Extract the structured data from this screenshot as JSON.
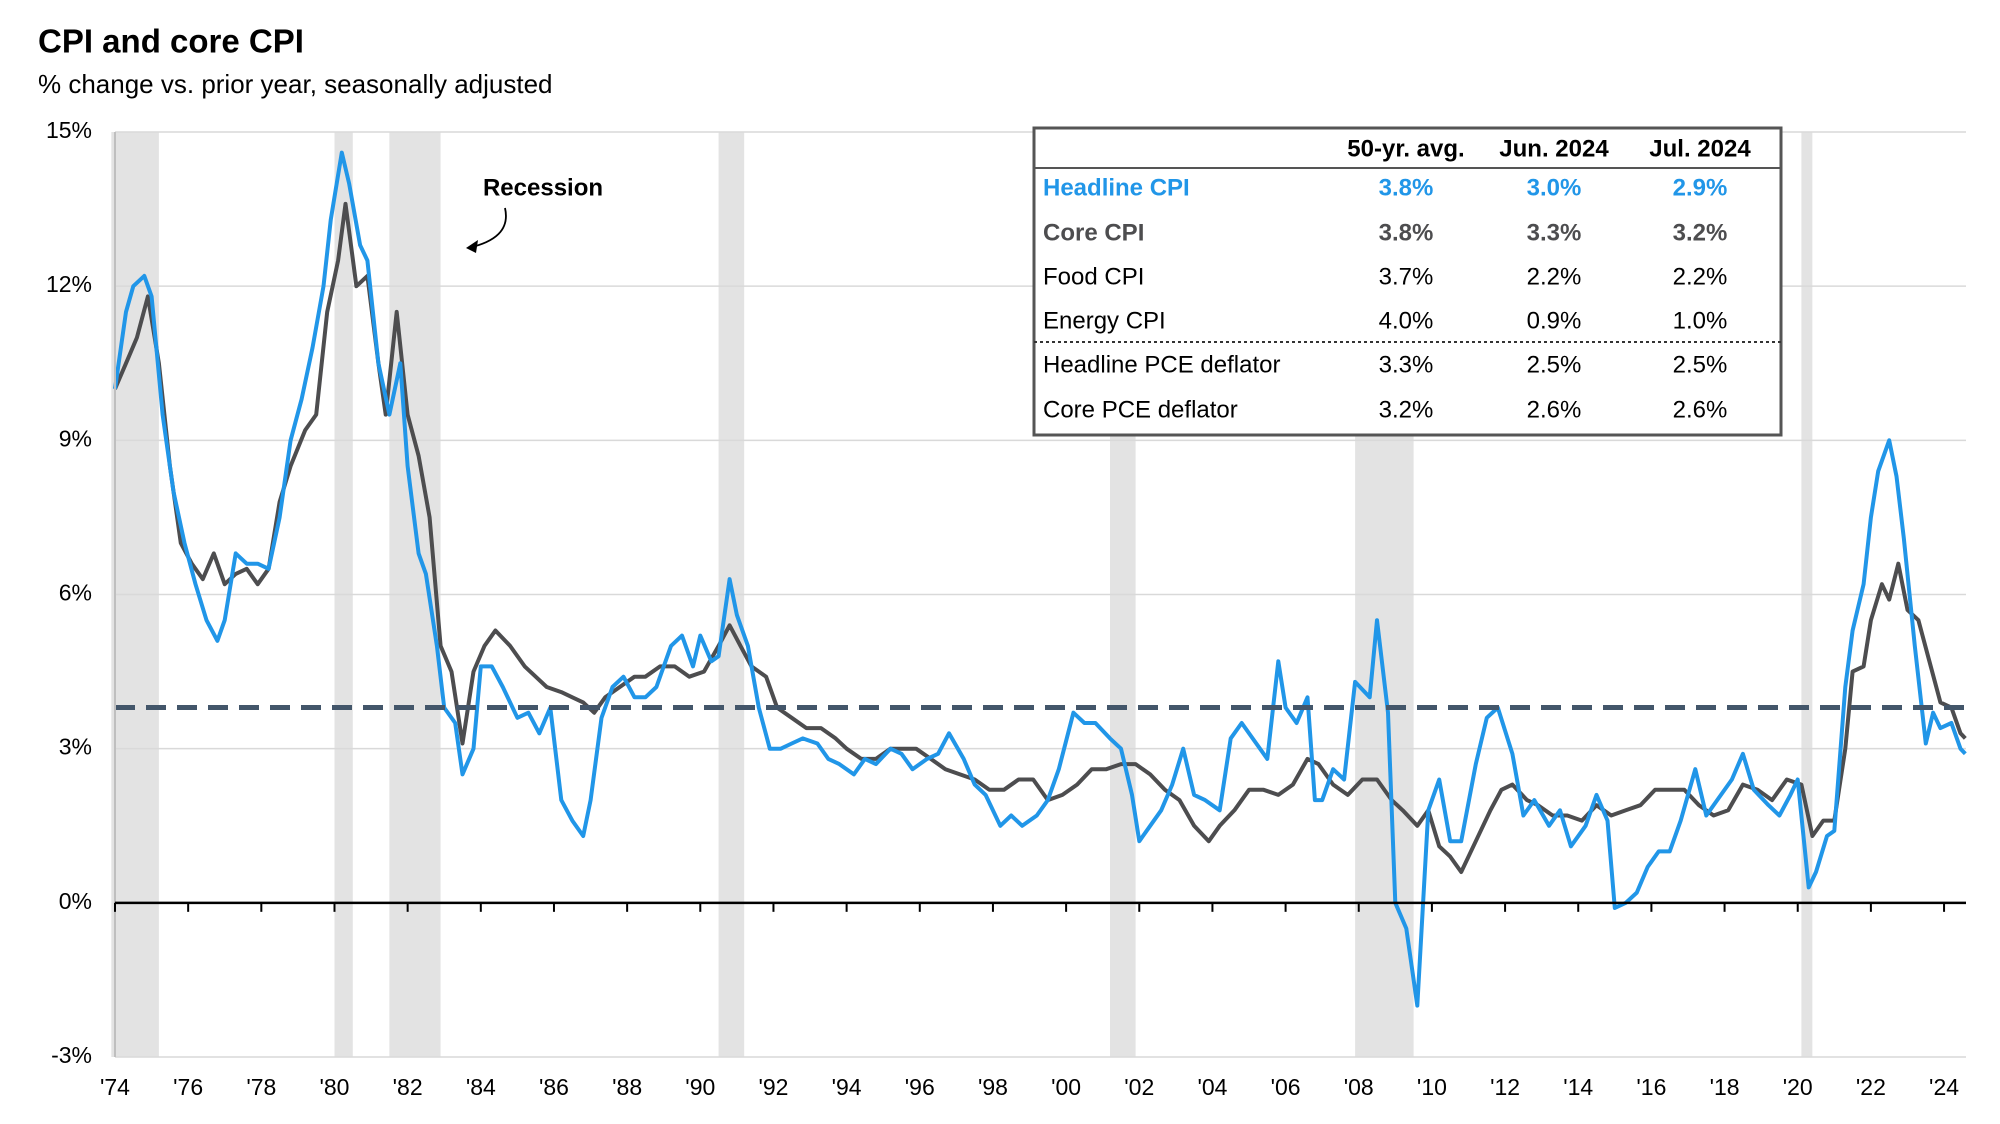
{
  "chart_data": {
    "type": "line",
    "title": "CPI and core CPI",
    "subtitle": "% change vs. prior year, seasonally adjusted",
    "annotation": "Recession",
    "xlim": [
      1974,
      2024.6
    ],
    "xticks": [
      {
        "value": 1974,
        "label": "'74"
      },
      {
        "value": 1976,
        "label": "'76"
      },
      {
        "value": 1978,
        "label": "'78"
      },
      {
        "value": 1980,
        "label": "'80"
      },
      {
        "value": 1982,
        "label": "'82"
      },
      {
        "value": 1984,
        "label": "'84"
      },
      {
        "value": 1986,
        "label": "'86"
      },
      {
        "value": 1988,
        "label": "'88"
      },
      {
        "value": 1990,
        "label": "'90"
      },
      {
        "value": 1992,
        "label": "'92"
      },
      {
        "value": 1994,
        "label": "'94"
      },
      {
        "value": 1996,
        "label": "'96"
      },
      {
        "value": 1998,
        "label": "'98"
      },
      {
        "value": 2000,
        "label": "'00"
      },
      {
        "value": 2002,
        "label": "'02"
      },
      {
        "value": 2004,
        "label": "'04"
      },
      {
        "value": 2006,
        "label": "'06"
      },
      {
        "value": 2008,
        "label": "'08"
      },
      {
        "value": 2010,
        "label": "'10"
      },
      {
        "value": 2012,
        "label": "'12"
      },
      {
        "value": 2014,
        "label": "'14"
      },
      {
        "value": 2016,
        "label": "'16"
      },
      {
        "value": 2018,
        "label": "'18"
      },
      {
        "value": 2020,
        "label": "'20"
      },
      {
        "value": 2022,
        "label": "'22"
      },
      {
        "value": 2024,
        "label": "'24"
      }
    ],
    "ylim": [
      -3,
      15
    ],
    "yticks": [
      {
        "value": -3,
        "label": "-3%"
      },
      {
        "value": 0,
        "label": "0%"
      },
      {
        "value": 3,
        "label": "3%"
      },
      {
        "value": 6,
        "label": "6%"
      },
      {
        "value": 9,
        "label": "9%"
      },
      {
        "value": 12,
        "label": "12%"
      },
      {
        "value": 15,
        "label": "15%"
      }
    ],
    "grid": true,
    "recessions": [
      [
        1973.9,
        1975.2
      ],
      [
        1980.0,
        1980.5
      ],
      [
        1981.5,
        1982.9
      ],
      [
        1990.5,
        1991.2
      ],
      [
        2001.2,
        2001.9
      ],
      [
        2007.9,
        2009.5
      ],
      [
        2020.1,
        2020.4
      ]
    ],
    "recession_color": "#e3e3e3",
    "average": 3.8,
    "average_color": "#43566a",
    "series": [
      {
        "name": "Headline CPI",
        "color": "#2196e8",
        "x": [
          1974.0,
          1974.3,
          1974.5,
          1974.8,
          1975.0,
          1975.3,
          1975.6,
          1975.9,
          1976.2,
          1976.5,
          1976.8,
          1977.0,
          1977.3,
          1977.6,
          1977.9,
          1978.2,
          1978.5,
          1978.8,
          1979.1,
          1979.4,
          1979.7,
          1979.9,
          1980.2,
          1980.4,
          1980.7,
          1980.9,
          1981.2,
          1981.5,
          1981.8,
          1982.0,
          1982.3,
          1982.5,
          1982.8,
          1983.0,
          1983.3,
          1983.5,
          1983.8,
          1984.0,
          1984.3,
          1984.6,
          1985.0,
          1985.3,
          1985.6,
          1985.9,
          1986.2,
          1986.5,
          1986.8,
          1987.0,
          1987.3,
          1987.6,
          1987.9,
          1988.2,
          1988.5,
          1988.8,
          1989.2,
          1989.5,
          1989.8,
          1990.0,
          1990.3,
          1990.5,
          1990.8,
          1991.0,
          1991.3,
          1991.6,
          1991.9,
          1992.2,
          1992.5,
          1992.8,
          1993.2,
          1993.5,
          1993.8,
          1994.2,
          1994.5,
          1994.8,
          1995.2,
          1995.5,
          1995.8,
          1996.2,
          1996.5,
          1996.8,
          1997.2,
          1997.5,
          1997.8,
          1998.2,
          1998.5,
          1998.8,
          1999.2,
          1999.5,
          1999.8,
          2000.2,
          2000.5,
          2000.8,
          2001.2,
          2001.5,
          2001.8,
          2002.0,
          2002.3,
          2002.6,
          2002.9,
          2003.2,
          2003.5,
          2003.8,
          2004.2,
          2004.5,
          2004.8,
          2005.2,
          2005.5,
          2005.8,
          2006.0,
          2006.3,
          2006.6,
          2006.8,
          2007.0,
          2007.3,
          2007.6,
          2007.9,
          2008.3,
          2008.5,
          2008.8,
          2009.0,
          2009.3,
          2009.6,
          2009.9,
          2010.2,
          2010.5,
          2010.8,
          2011.2,
          2011.5,
          2011.8,
          2012.2,
          2012.5,
          2012.8,
          2013.2,
          2013.5,
          2013.8,
          2014.2,
          2014.5,
          2014.8,
          2015.0,
          2015.3,
          2015.6,
          2015.9,
          2016.2,
          2016.5,
          2016.8,
          2017.2,
          2017.5,
          2017.8,
          2018.2,
          2018.5,
          2018.8,
          2019.2,
          2019.5,
          2019.8,
          2020.0,
          2020.3,
          2020.5,
          2020.8,
          2021.0,
          2021.3,
          2021.5,
          2021.8,
          2022.0,
          2022.2,
          2022.5,
          2022.7,
          2022.9,
          2023.2,
          2023.5,
          2023.7,
          2023.9,
          2024.2,
          2024.45,
          2024.58
        ],
        "values": [
          10.0,
          11.5,
          12.0,
          12.2,
          11.8,
          9.5,
          8.0,
          7.0,
          6.2,
          5.5,
          5.1,
          5.5,
          6.8,
          6.6,
          6.6,
          6.5,
          7.5,
          9.0,
          9.8,
          10.8,
          12.0,
          13.3,
          14.6,
          14.0,
          12.8,
          12.5,
          10.5,
          9.5,
          10.5,
          8.5,
          6.8,
          6.4,
          5.0,
          3.8,
          3.5,
          2.5,
          3.0,
          4.6,
          4.6,
          4.2,
          3.6,
          3.7,
          3.3,
          3.8,
          2.0,
          1.6,
          1.3,
          2.0,
          3.6,
          4.2,
          4.4,
          4.0,
          4.0,
          4.2,
          5.0,
          5.2,
          4.6,
          5.2,
          4.7,
          4.8,
          6.3,
          5.6,
          5.0,
          3.8,
          3.0,
          3.0,
          3.1,
          3.2,
          3.1,
          2.8,
          2.7,
          2.5,
          2.8,
          2.7,
          3.0,
          2.9,
          2.6,
          2.8,
          2.9,
          3.3,
          2.8,
          2.3,
          2.1,
          1.5,
          1.7,
          1.5,
          1.7,
          2.0,
          2.6,
          3.7,
          3.5,
          3.5,
          3.2,
          3.0,
          2.1,
          1.2,
          1.5,
          1.8,
          2.3,
          3.0,
          2.1,
          2.0,
          1.8,
          3.2,
          3.5,
          3.1,
          2.8,
          4.7,
          3.8,
          3.5,
          4.0,
          2.0,
          2.0,
          2.6,
          2.4,
          4.3,
          4.0,
          5.5,
          3.7,
          0.0,
          -0.5,
          -2.0,
          1.8,
          2.4,
          1.2,
          1.2,
          2.7,
          3.6,
          3.8,
          2.9,
          1.7,
          2.0,
          1.5,
          1.8,
          1.1,
          1.5,
          2.1,
          1.6,
          -0.1,
          0.0,
          0.2,
          0.7,
          1.0,
          1.0,
          1.6,
          2.6,
          1.7,
          2.0,
          2.4,
          2.9,
          2.2,
          1.9,
          1.7,
          2.1,
          2.4,
          0.3,
          0.6,
          1.3,
          1.4,
          4.2,
          5.3,
          6.2,
          7.5,
          8.4,
          9.0,
          8.3,
          7.1,
          5.0,
          3.1,
          3.7,
          3.4,
          3.5,
          3.0,
          2.9
        ]
      },
      {
        "name": "Core CPI",
        "color": "#4d4d4f",
        "x": [
          1974.0,
          1974.3,
          1974.6,
          1974.9,
          1975.2,
          1975.5,
          1975.8,
          1976.1,
          1976.4,
          1976.7,
          1977.0,
          1977.3,
          1977.6,
          1977.9,
          1978.2,
          1978.5,
          1978.8,
          1979.2,
          1979.5,
          1979.8,
          1980.1,
          1980.3,
          1980.6,
          1980.9,
          1981.2,
          1981.4,
          1981.7,
          1982.0,
          1982.3,
          1982.6,
          1982.9,
          1983.2,
          1983.5,
          1983.8,
          1984.1,
          1984.4,
          1984.8,
          1985.2,
          1985.5,
          1985.8,
          1986.2,
          1986.5,
          1986.8,
          1987.1,
          1987.4,
          1987.8,
          1988.2,
          1988.5,
          1988.9,
          1989.3,
          1989.7,
          1990.1,
          1990.5,
          1990.8,
          1991.1,
          1991.4,
          1991.8,
          1992.1,
          1992.5,
          1992.9,
          1993.3,
          1993.7,
          1994.0,
          1994.4,
          1994.8,
          1995.2,
          1995.6,
          1995.9,
          1996.3,
          1996.7,
          1997.1,
          1997.5,
          1997.9,
          1998.3,
          1998.7,
          1999.1,
          1999.5,
          1999.9,
          2000.3,
          2000.7,
          2001.1,
          2001.5,
          2001.9,
          2002.3,
          2002.7,
          2003.1,
          2003.5,
          2003.9,
          2004.2,
          2004.6,
          2005.0,
          2005.4,
          2005.8,
          2006.2,
          2006.6,
          2006.9,
          2007.3,
          2007.7,
          2008.1,
          2008.5,
          2008.9,
          2009.2,
          2009.6,
          2009.9,
          2010.2,
          2010.5,
          2010.8,
          2011.2,
          2011.6,
          2011.9,
          2012.2,
          2012.6,
          2012.9,
          2013.3,
          2013.7,
          2014.1,
          2014.5,
          2014.9,
          2015.3,
          2015.7,
          2016.1,
          2016.5,
          2016.9,
          2017.3,
          2017.7,
          2018.1,
          2018.5,
          2018.9,
          2019.3,
          2019.7,
          2020.1,
          2020.4,
          2020.7,
          2021.0,
          2021.3,
          2021.5,
          2021.8,
          2022.0,
          2022.3,
          2022.5,
          2022.75,
          2023.0,
          2023.3,
          2023.6,
          2023.9,
          2024.2,
          2024.45,
          2024.58
        ],
        "values": [
          10.0,
          10.5,
          11.0,
          11.8,
          10.5,
          8.5,
          7.0,
          6.6,
          6.3,
          6.8,
          6.2,
          6.4,
          6.5,
          6.2,
          6.5,
          7.8,
          8.5,
          9.2,
          9.5,
          11.5,
          12.5,
          13.6,
          12.0,
          12.2,
          10.5,
          9.5,
          11.5,
          9.5,
          8.7,
          7.5,
          5.0,
          4.5,
          3.1,
          4.5,
          5.0,
          5.3,
          5.0,
          4.6,
          4.4,
          4.2,
          4.1,
          4.0,
          3.9,
          3.7,
          4.0,
          4.2,
          4.4,
          4.4,
          4.6,
          4.6,
          4.4,
          4.5,
          5.0,
          5.4,
          5.0,
          4.6,
          4.4,
          3.8,
          3.6,
          3.4,
          3.4,
          3.2,
          3.0,
          2.8,
          2.8,
          3.0,
          3.0,
          3.0,
          2.8,
          2.6,
          2.5,
          2.4,
          2.2,
          2.2,
          2.4,
          2.4,
          2.0,
          2.1,
          2.3,
          2.6,
          2.6,
          2.7,
          2.7,
          2.5,
          2.2,
          2.0,
          1.5,
          1.2,
          1.5,
          1.8,
          2.2,
          2.2,
          2.1,
          2.3,
          2.8,
          2.7,
          2.3,
          2.1,
          2.4,
          2.4,
          2.0,
          1.8,
          1.5,
          1.8,
          1.1,
          0.9,
          0.6,
          1.2,
          1.8,
          2.2,
          2.3,
          2.0,
          1.9,
          1.7,
          1.7,
          1.6,
          1.9,
          1.7,
          1.8,
          1.9,
          2.2,
          2.2,
          2.2,
          1.9,
          1.7,
          1.8,
          2.3,
          2.2,
          2.0,
          2.4,
          2.3,
          1.3,
          1.6,
          1.6,
          3.0,
          4.5,
          4.6,
          5.5,
          6.2,
          5.9,
          6.6,
          5.7,
          5.5,
          4.7,
          3.9,
          3.8,
          3.3,
          3.2
        ]
      }
    ]
  },
  "table": {
    "columns": [
      "50-yr. avg.",
      "Jun. 2024",
      "Jul. 2024"
    ],
    "rows": [
      {
        "label": "Headline CPI",
        "color": "#2196e8",
        "cells": [
          "3.8%",
          "3.0%",
          "2.9%"
        ]
      },
      {
        "label": "Core CPI",
        "color": "#4d4d4f",
        "cells": [
          "3.8%",
          "3.3%",
          "3.2%"
        ]
      },
      {
        "label": "Food CPI",
        "color": "#000000",
        "cells": [
          "3.7%",
          "2.2%",
          "2.2%"
        ]
      },
      {
        "label": "Energy CPI",
        "color": "#000000",
        "cells": [
          "4.0%",
          "0.9%",
          "1.0%"
        ]
      },
      {
        "label": "Headline PCE deflator",
        "color": "#000000",
        "cells": [
          "3.3%",
          "2.5%",
          "2.5%"
        ]
      },
      {
        "label": "Core PCE deflator",
        "color": "#000000",
        "cells": [
          "3.2%",
          "2.6%",
          "2.6%"
        ]
      }
    ]
  }
}
